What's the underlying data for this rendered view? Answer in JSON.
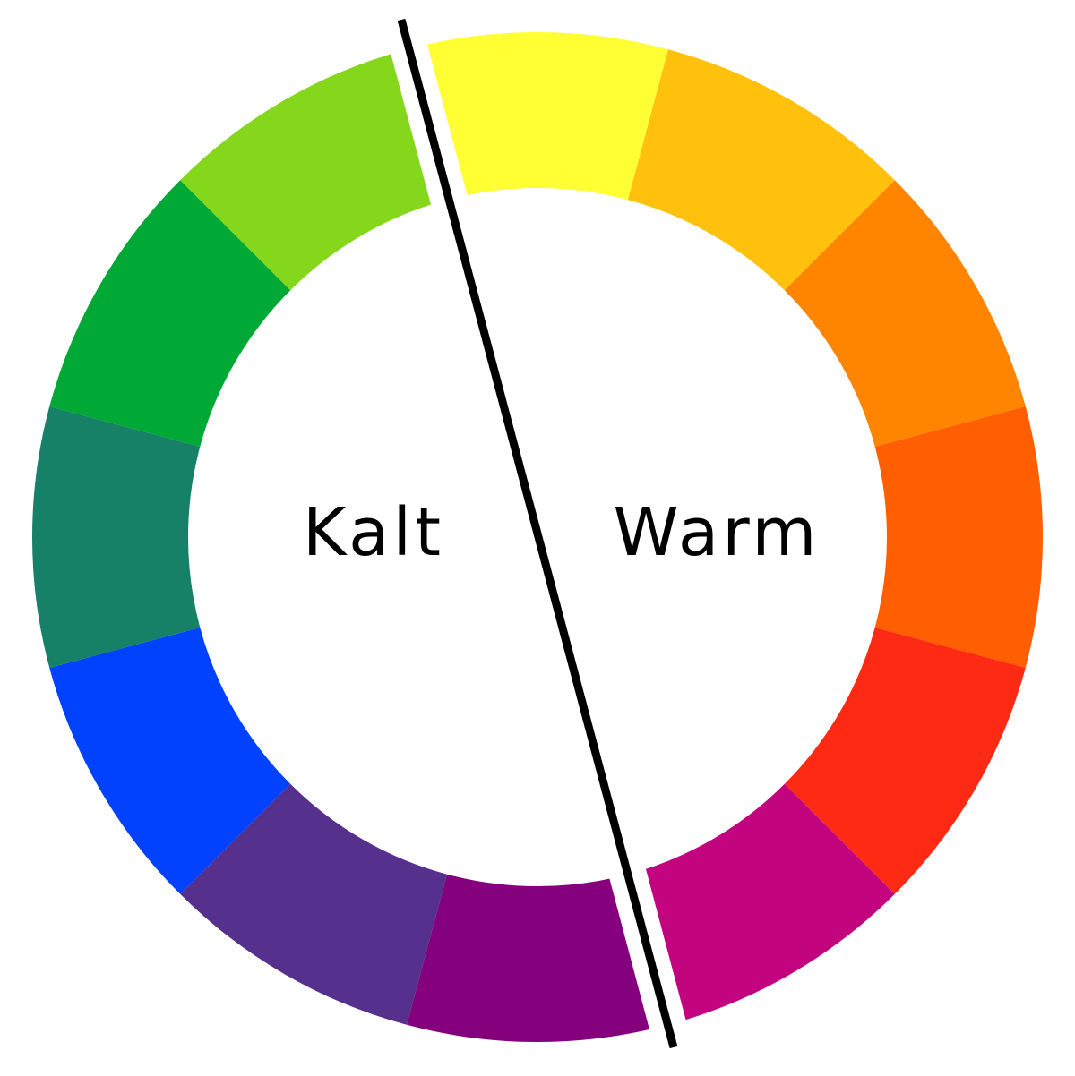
{
  "diagram": {
    "type": "color-wheel",
    "segments_clockwise_from_top": [
      {
        "color": "#FFFF33",
        "group": "warm"
      },
      {
        "color": "#FFC10B",
        "group": "warm"
      },
      {
        "color": "#FF8500",
        "group": "warm"
      },
      {
        "color": "#FF5F00",
        "group": "warm"
      },
      {
        "color": "#FF2A14",
        "group": "warm"
      },
      {
        "color": "#C2047E",
        "group": "warm"
      },
      {
        "color": "#84007D",
        "group": "cold"
      },
      {
        "color": "#55308D",
        "group": "cold"
      },
      {
        "color": "#0042FF",
        "group": "cold"
      },
      {
        "color": "#168167",
        "group": "cold"
      },
      {
        "color": "#00A835",
        "group": "cold"
      },
      {
        "color": "#84D71B",
        "group": "cold"
      }
    ],
    "divider_color": "#000000",
    "labels": {
      "cold": "Kalt",
      "warm": "Warm"
    }
  }
}
